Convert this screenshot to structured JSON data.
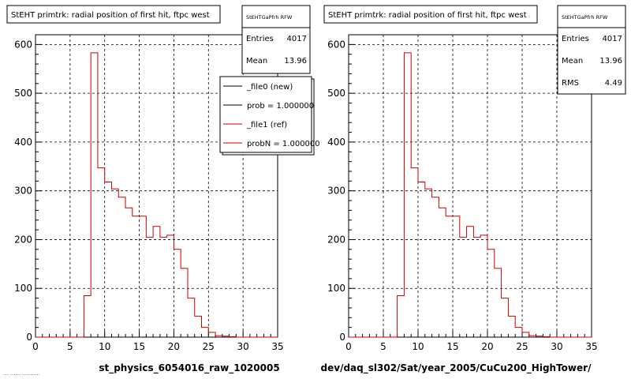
{
  "chart_data": [
    {
      "type": "bar",
      "title": "StEHT primtrk: radial position of first hit, ftpc west",
      "xlabel": "st_physics_6054016_raw_1020005",
      "ylabel": "",
      "xlim": [
        0,
        35
      ],
      "ylim": [
        0,
        620
      ],
      "x_ticks": [
        "0",
        "5",
        "10",
        "15",
        "20",
        "25",
        "30",
        "35"
      ],
      "y_ticks": [
        "0",
        "100",
        "200",
        "300",
        "400",
        "500",
        "600"
      ],
      "grid": true,
      "bin_width": 1,
      "bin_low_edges": [
        7,
        8,
        9,
        10,
        11,
        12,
        13,
        14,
        15,
        16,
        17,
        18,
        19,
        20,
        21,
        22,
        23,
        24,
        25,
        26,
        27,
        28
      ],
      "series": [
        {
          "name": "_file1 (ref)",
          "color": "#cc0000",
          "values": [
            85,
            583,
            347,
            318,
            304,
            287,
            265,
            248,
            248,
            205,
            227,
            205,
            209,
            180,
            141,
            80,
            43,
            20,
            10,
            3,
            2,
            1
          ]
        }
      ],
      "stats": {
        "name": "StEHTGaPfrh RFW",
        "entries_label": "Entries",
        "entries": "4017",
        "mean_label": "Mean",
        "mean": "13.96"
      },
      "legend": {
        "placement": "top-right",
        "entries": [
          {
            "label": "_file0 (new)",
            "color": "#000000"
          },
          {
            "label": "prob = 1.000000",
            "color": "#000000"
          },
          {
            "label": "_file1 (ref)",
            "color": "#cc0000"
          },
          {
            "label": "probN = 1.000000",
            "color": "#cc0000"
          }
        ]
      }
    },
    {
      "type": "bar",
      "title": "StEHT primtrk: radial position of first hit, ftpc west",
      "xlabel": "dev/daq_sl302/Sat/year_2005/CuCu200_HighTower/",
      "ylabel": "",
      "xlim": [
        0,
        35
      ],
      "ylim": [
        0,
        620
      ],
      "x_ticks": [
        "0",
        "5",
        "10",
        "15",
        "20",
        "25",
        "30",
        "35"
      ],
      "y_ticks": [
        "0",
        "100",
        "200",
        "300",
        "400",
        "500",
        "600"
      ],
      "grid": true,
      "bin_width": 1,
      "bin_low_edges": [
        7,
        8,
        9,
        10,
        11,
        12,
        13,
        14,
        15,
        16,
        17,
        18,
        19,
        20,
        21,
        22,
        23,
        24,
        25,
        26,
        27,
        28
      ],
      "series": [
        {
          "name": "",
          "color": "#cc0000",
          "values": [
            85,
            583,
            347,
            318,
            304,
            287,
            265,
            248,
            248,
            205,
            227,
            205,
            209,
            180,
            141,
            80,
            43,
            20,
            10,
            3,
            2,
            1
          ]
        }
      ],
      "stats": {
        "name": "StEHTGaPfrh RFW",
        "entries_label": "Entries",
        "entries": "4017",
        "mean_label": "Mean",
        "mean": "13.96",
        "rms_label": "RMS",
        "rms": "4.49"
      }
    }
  ],
  "footer_text": "... ...... .........."
}
